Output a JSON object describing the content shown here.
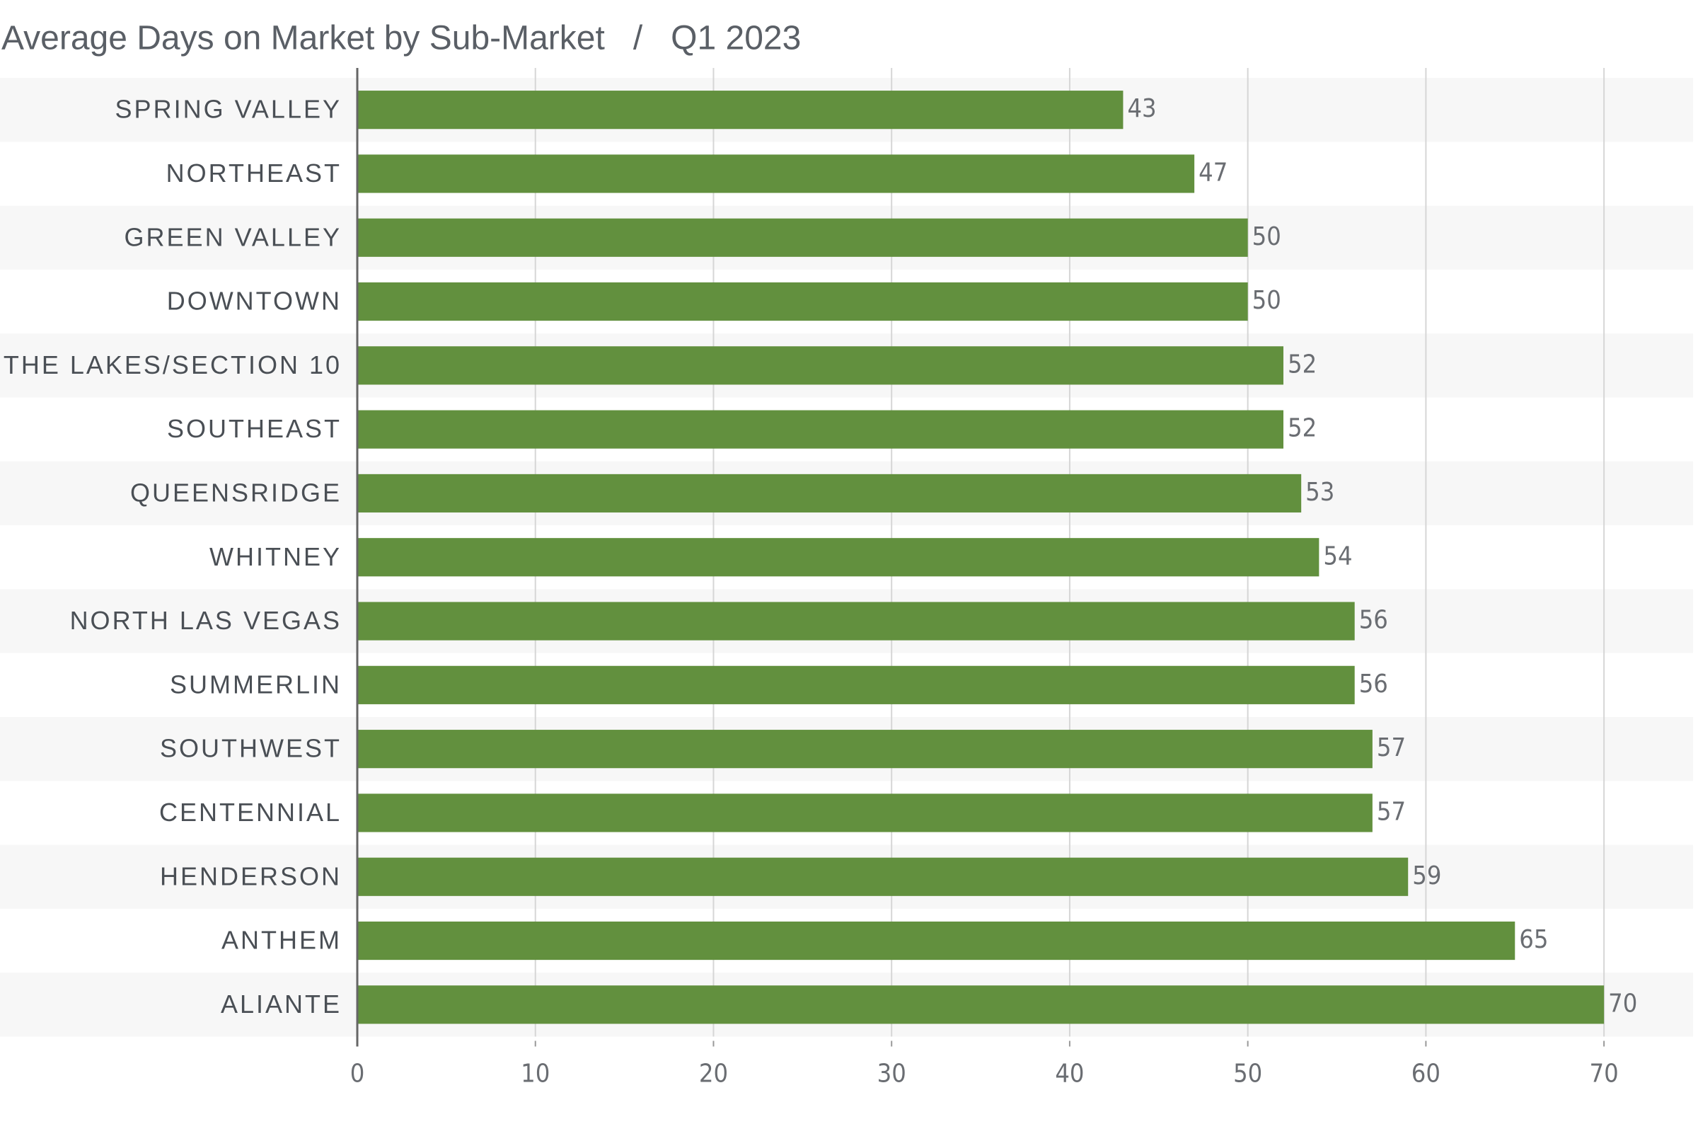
{
  "chart_data": {
    "type": "hbar",
    "title": "Average Days on Market by Sub-Market   /   Q1 2023",
    "categories": [
      "SPRING VALLEY",
      "NORTHEAST",
      "GREEN VALLEY",
      "DOWNTOWN",
      "THE LAKES/SECTION 10",
      "SOUTHEAST",
      "QUEENSRIDGE",
      "WHITNEY",
      "NORTH LAS VEGAS",
      "SUMMERLIN",
      "SOUTHWEST",
      "CENTENNIAL",
      "HENDERSON",
      "ANTHEM",
      "ALIANTE"
    ],
    "values": [
      43,
      47,
      50,
      50,
      52,
      52,
      53,
      54,
      56,
      56,
      57,
      57,
      59,
      65,
      70
    ],
    "color": "#62903e",
    "xlim": [
      0,
      75
    ],
    "xticks": [
      0,
      10,
      20,
      30,
      40,
      50,
      60,
      70
    ],
    "grid": true
  }
}
